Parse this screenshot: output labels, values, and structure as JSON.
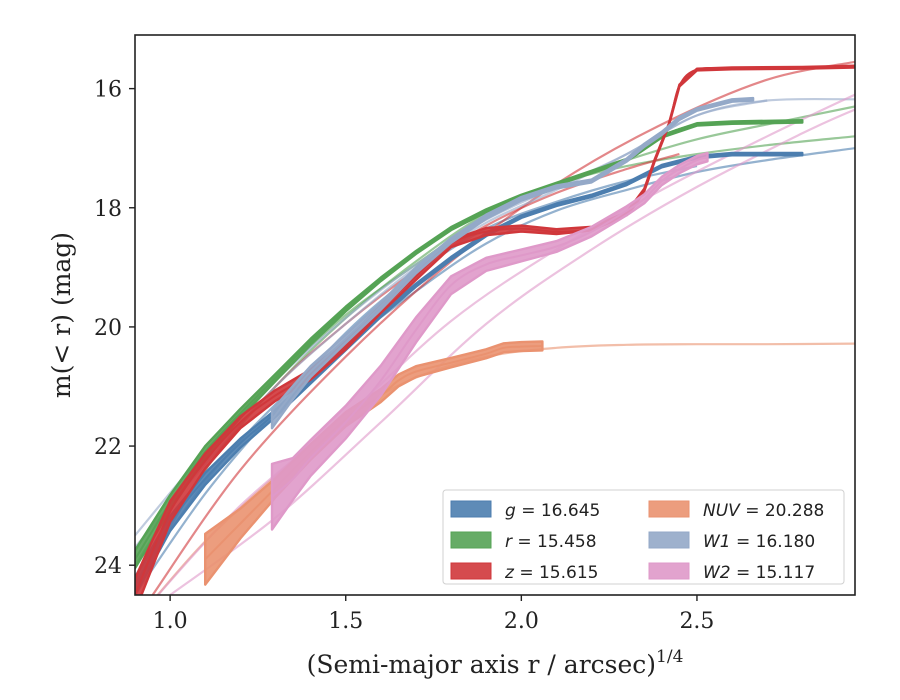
{
  "chart_data": {
    "type": "line",
    "xlabel": "(Semi-major axis r / arcsec)",
    "xlabel_sup": "1/4",
    "ylabel": "m(< r) (mag)",
    "xlim": [
      0.9,
      2.95
    ],
    "ylim": [
      24.5,
      15.1
    ],
    "y_inverted": true,
    "grid": false,
    "legend_position": "lower-right",
    "xticks": [
      {
        "v": 1.0,
        "label": "1.0"
      },
      {
        "v": 1.5,
        "label": "1.5"
      },
      {
        "v": 2.0,
        "label": "2.0"
      },
      {
        "v": 2.5,
        "label": "2.5"
      }
    ],
    "yticks": [
      {
        "v": 16,
        "label": "16"
      },
      {
        "v": 18,
        "label": "18"
      },
      {
        "v": 20,
        "label": "20"
      },
      {
        "v": 22,
        "label": "22"
      },
      {
        "v": 24,
        "label": "24"
      }
    ],
    "series": [
      {
        "name": "g",
        "label": "g = 16.645",
        "color": "#4c7eaf",
        "band": {
          "x": [
            0.9,
            1.0,
            1.1,
            1.2,
            1.3,
            1.4,
            1.5,
            1.6,
            1.7,
            1.8,
            1.9,
            2.0,
            2.1,
            2.2,
            2.3,
            2.4,
            2.5,
            2.6,
            2.8
          ],
          "y": [
            24.35,
            23.3,
            22.55,
            21.95,
            21.45,
            20.9,
            20.35,
            19.8,
            19.3,
            18.85,
            18.45,
            18.15,
            17.95,
            17.8,
            17.6,
            17.3,
            17.15,
            17.1,
            17.1
          ],
          "width": [
            0.3,
            0.25,
            0.2,
            0.15,
            0.12,
            0.1,
            0.08,
            0.06,
            0.05,
            0.05,
            0.05,
            0.04,
            0.04,
            0.04,
            0.04,
            0.04,
            0.04,
            0.04,
            0.04
          ]
        },
        "model": [
          {
            "x": [
              0.9,
              1.1,
              1.3,
              1.5,
              1.7,
              1.9,
              2.1,
              2.3,
              2.5,
              2.7,
              2.95
            ],
            "y": [
              24.3,
              22.6,
              21.3,
              20.3,
              19.4,
              18.6,
              18.05,
              17.7,
              17.4,
              17.2,
              17.0
            ]
          },
          {
            "x": [
              0.9,
              1.1,
              1.3,
              1.5,
              1.7,
              1.9,
              2.1,
              2.3,
              2.5
            ],
            "y": [
              24.5,
              22.8,
              21.4,
              20.1,
              19.1,
              18.35,
              17.9,
              17.55,
              17.3
            ]
          }
        ]
      },
      {
        "name": "r",
        "label": "r = 15.458",
        "color": "#55a355",
        "band": {
          "x": [
            0.9,
            1.0,
            1.1,
            1.2,
            1.3,
            1.4,
            1.5,
            1.6,
            1.7,
            1.8,
            1.9,
            2.0,
            2.1,
            2.2,
            2.3,
            2.4,
            2.5,
            2.6,
            2.8
          ],
          "y": [
            23.9,
            22.95,
            22.1,
            21.45,
            20.85,
            20.25,
            19.7,
            19.2,
            18.75,
            18.35,
            18.05,
            17.8,
            17.6,
            17.4,
            17.2,
            16.8,
            16.6,
            16.57,
            16.55
          ],
          "width": [
            0.3,
            0.25,
            0.2,
            0.15,
            0.12,
            0.1,
            0.08,
            0.06,
            0.05,
            0.05,
            0.05,
            0.04,
            0.04,
            0.04,
            0.04,
            0.04,
            0.04,
            0.04,
            0.04
          ]
        },
        "model": [
          {
            "x": [
              0.9,
              1.1,
              1.3,
              1.5,
              1.7,
              1.9,
              2.1,
              2.3,
              2.5,
              2.7,
              2.95
            ],
            "y": [
              24.0,
              22.2,
              20.9,
              19.8,
              18.95,
              18.15,
              17.6,
              17.2,
              16.85,
              16.6,
              16.3
            ]
          },
          {
            "x": [
              0.9,
              1.1,
              1.3,
              1.5,
              1.7,
              1.9,
              2.1,
              2.3,
              2.5,
              2.7,
              2.95
            ],
            "y": [
              24.2,
              22.4,
              21.0,
              19.85,
              18.9,
              18.1,
              17.6,
              17.3,
              17.1,
              16.95,
              16.8
            ]
          }
        ]
      },
      {
        "name": "z",
        "label": "z = 15.615",
        "color": "#d0373b",
        "band": {
          "x": [
            0.9,
            1.0,
            1.1,
            1.2,
            1.3,
            1.4,
            1.5,
            1.6,
            1.7,
            1.8,
            1.9,
            2.0,
            2.1,
            2.2,
            2.3,
            2.35,
            2.38,
            2.42,
            2.45,
            2.5,
            2.6,
            2.8,
            2.95
          ],
          "y": [
            24.5,
            23.1,
            22.25,
            21.6,
            21.15,
            20.8,
            20.3,
            19.7,
            19.15,
            18.6,
            18.4,
            18.35,
            18.4,
            18.35,
            18.1,
            17.7,
            17.2,
            16.6,
            15.95,
            15.68,
            15.66,
            15.65,
            15.63
          ],
          "width": [
            0.55,
            0.35,
            0.25,
            0.2,
            0.18,
            0.17,
            0.15,
            0.13,
            0.12,
            0.12,
            0.12,
            0.1,
            0.08,
            0.06,
            0.05,
            0.04,
            0.03,
            0.03,
            0.03,
            0.03,
            0.03,
            0.03,
            0.03
          ]
        },
        "model": [
          {
            "x": [
              0.9,
              1.1,
              1.3,
              1.5,
              1.7,
              1.9,
              2.1,
              2.3,
              2.45
            ],
            "y": [
              24.4,
              22.4,
              21.0,
              19.95,
              19.05,
              18.3,
              17.75,
              17.35,
              17.1
            ]
          },
          {
            "x": [
              0.95,
              1.2,
              1.5,
              1.8,
              2.1,
              2.4,
              2.7,
              2.95
            ],
            "y": [
              24.5,
              22.4,
              20.5,
              18.9,
              17.6,
              16.6,
              15.85,
              15.55
            ]
          }
        ]
      },
      {
        "name": "NUV",
        "label": "NUV = 20.288",
        "color": "#ea9270",
        "band": {
          "x": [
            1.1,
            1.2,
            1.3,
            1.4,
            1.5,
            1.6,
            1.65,
            1.7,
            1.8,
            1.9,
            1.95,
            2.0,
            2.06
          ],
          "y": [
            23.9,
            23.3,
            22.7,
            22.1,
            21.55,
            21.15,
            20.9,
            20.75,
            20.6,
            20.45,
            20.35,
            20.33,
            20.32
          ],
          "width": [
            0.85,
            0.5,
            0.32,
            0.26,
            0.24,
            0.22,
            0.2,
            0.18,
            0.16,
            0.15,
            0.15,
            0.15,
            0.15
          ]
        },
        "model": [
          {
            "x": [
              0.95,
              1.1,
              1.3,
              1.5,
              1.7,
              1.9,
              2.1,
              2.3,
              2.5,
              2.7,
              2.95
            ],
            "y": [
              24.6,
              23.6,
              22.5,
              21.5,
              20.85,
              20.5,
              20.35,
              20.3,
              20.29,
              20.29,
              20.28
            ]
          }
        ]
      },
      {
        "name": "W1",
        "label": "W1 = 16.180",
        "color": "#94a9c8",
        "band": {
          "x": [
            1.29,
            1.35,
            1.4,
            1.5,
            1.6,
            1.7,
            1.8,
            1.9,
            2.0,
            2.1,
            2.2,
            2.3,
            2.35,
            2.4,
            2.45,
            2.5,
            2.6,
            2.66
          ],
          "y": [
            21.55,
            21.1,
            20.75,
            20.2,
            19.65,
            19.05,
            18.55,
            18.15,
            17.85,
            17.65,
            17.55,
            17.2,
            16.95,
            16.75,
            16.5,
            16.35,
            16.2,
            16.18
          ],
          "width": [
            0.3,
            0.22,
            0.18,
            0.14,
            0.12,
            0.1,
            0.08,
            0.07,
            0.06,
            0.05,
            0.05,
            0.05,
            0.05,
            0.05,
            0.05,
            0.04,
            0.04,
            0.04
          ]
        },
        "model": [
          {
            "x": [
              0.9,
              1.1,
              1.3,
              1.5,
              1.7,
              1.9,
              2.1,
              2.3,
              2.5,
              2.7,
              2.95
            ],
            "y": [
              23.5,
              22.1,
              20.9,
              19.85,
              18.95,
              18.2,
              17.65,
              17.1,
              16.45,
              16.2,
              16.18
            ]
          },
          {
            "x": [
              0.9,
              1.1,
              1.3,
              1.5,
              1.7,
              1.9,
              2.1,
              2.3,
              2.5,
              2.7
            ],
            "y": [
              23.7,
              22.3,
              21.0,
              19.95,
              19.0,
              18.25,
              17.7,
              17.1,
              16.45,
              16.2
            ]
          }
        ]
      },
      {
        "name": "W2",
        "label": "W2 = 15.117",
        "color": "#df99c9",
        "band": {
          "x": [
            1.29,
            1.35,
            1.4,
            1.5,
            1.6,
            1.7,
            1.8,
            1.9,
            2.0,
            2.1,
            2.2,
            2.3,
            2.35,
            2.4,
            2.45,
            2.5,
            2.53
          ],
          "y": [
            22.85,
            22.55,
            22.2,
            21.6,
            20.9,
            20.05,
            19.3,
            18.95,
            18.8,
            18.65,
            18.4,
            18.05,
            17.85,
            17.55,
            17.35,
            17.2,
            17.15
          ],
          "width": [
            1.1,
            0.7,
            0.6,
            0.55,
            0.5,
            0.42,
            0.3,
            0.22,
            0.2,
            0.18,
            0.16,
            0.15,
            0.15,
            0.14,
            0.14,
            0.14,
            0.14
          ]
        },
        "model": [
          {
            "x": [
              0.95,
              1.2,
              1.5,
              1.8,
              2.1,
              2.4,
              2.7,
              2.95
            ],
            "y": [
              24.6,
              23.0,
              21.5,
              19.9,
              18.7,
              17.7,
              16.8,
              16.1
            ]
          },
          {
            "x": [
              1.0,
              1.3,
              1.6,
              1.9,
              2.2,
              2.5,
              2.8,
              2.95
            ],
            "y": [
              24.5,
              23.2,
              21.6,
              19.95,
              18.7,
              17.65,
              16.75,
              16.35
            ]
          }
        ]
      }
    ]
  }
}
